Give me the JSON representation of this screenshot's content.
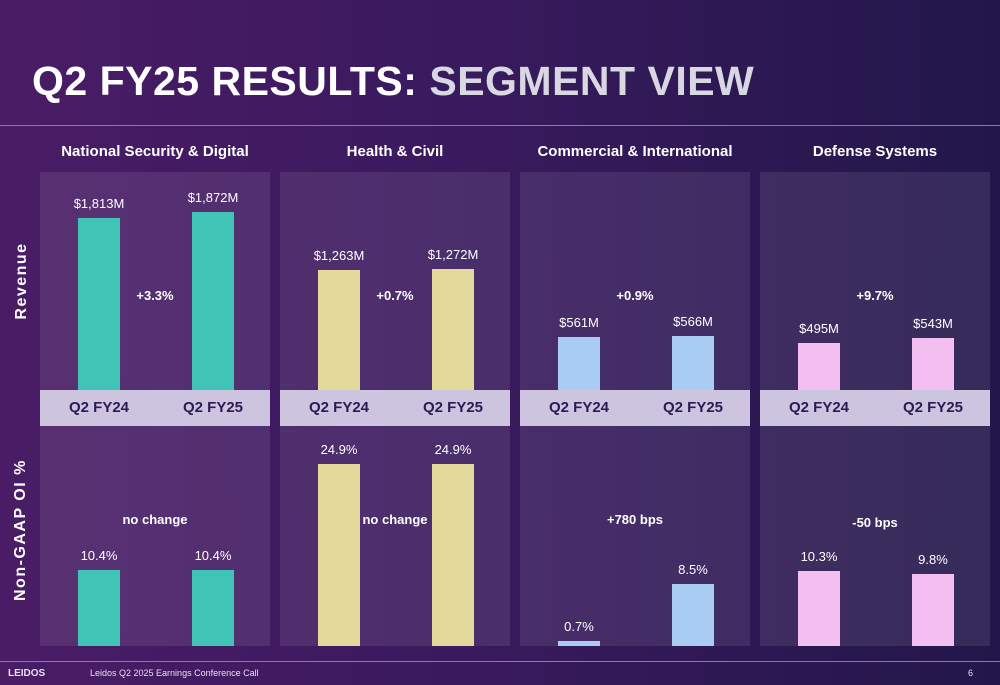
{
  "slide": {
    "title_part1": "Q2 FY25 RESULTS:",
    "title_part2": "SEGMENT VIEW",
    "row_labels": {
      "revenue": "Revenue",
      "oi": "Non-GAAP OI %"
    },
    "footer": {
      "logo": "LEIDOS",
      "text": "Leidos Q2 2025 Earnings Conference Call",
      "page": "6"
    }
  },
  "chart_data": [
    {
      "type": "bar",
      "segment": "National Security & Digital",
      "categories": [
        "Q2 FY24",
        "Q2 FY25"
      ],
      "color": "#3fc4b6",
      "revenue": {
        "values": [
          1813,
          1872
        ],
        "labels": [
          "$1,813M",
          "$1,872M"
        ],
        "change": "+3.3%"
      },
      "oi_margin": {
        "values": [
          10.4,
          10.4
        ],
        "labels": [
          "10.4%",
          "10.4%"
        ],
        "change": "no change"
      }
    },
    {
      "type": "bar",
      "segment": "Health & Civil",
      "categories": [
        "Q2 FY24",
        "Q2 FY25"
      ],
      "color": "#e3d99a",
      "revenue": {
        "values": [
          1263,
          1272
        ],
        "labels": [
          "$1,263M",
          "$1,272M"
        ],
        "change": "+0.7%"
      },
      "oi_margin": {
        "values": [
          24.9,
          24.9
        ],
        "labels": [
          "24.9%",
          "24.9%"
        ],
        "change": "no change"
      }
    },
    {
      "type": "bar",
      "segment": "Commercial & International",
      "categories": [
        "Q2 FY24",
        "Q2 FY25"
      ],
      "color": "#a9cdf2",
      "revenue": {
        "values": [
          561,
          566
        ],
        "labels": [
          "$561M",
          "$566M"
        ],
        "change": "+0.9%"
      },
      "oi_margin": {
        "values": [
          0.7,
          8.5
        ],
        "labels": [
          "0.7%",
          "8.5%"
        ],
        "change": "+780 bps"
      }
    },
    {
      "type": "bar",
      "segment": "Defense Systems",
      "categories": [
        "Q2 FY24",
        "Q2 FY25"
      ],
      "color": "#f2bff0",
      "revenue": {
        "values": [
          495,
          543
        ],
        "labels": [
          "$495M",
          "$543M"
        ],
        "change": "+9.7%"
      },
      "oi_margin": {
        "values": [
          10.3,
          9.8
        ],
        "labels": [
          "10.3%",
          "9.8%"
        ],
        "change": "-50 bps"
      }
    }
  ]
}
